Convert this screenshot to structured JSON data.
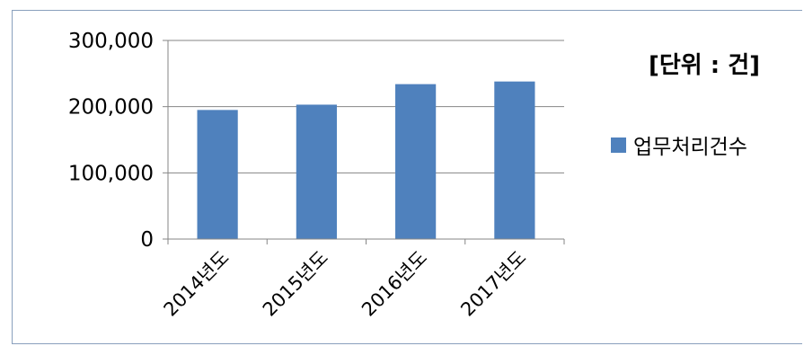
{
  "chart_data": {
    "type": "bar",
    "categories": [
      "2014년도",
      "2015년도",
      "2016년도",
      "2017년도"
    ],
    "series": [
      {
        "name": "업무처리건수",
        "values": [
          195000,
          203000,
          234000,
          238000
        ],
        "color": "#4f81bd"
      }
    ],
    "ylim": [
      0,
      300000
    ],
    "yticks": [
      0,
      100000,
      200000,
      300000
    ],
    "ytick_labels": [
      "0",
      "100,000",
      "200,000",
      "300,000"
    ],
    "unit_note": "[단위 : 건]",
    "grid": true,
    "legend_position": "right"
  }
}
